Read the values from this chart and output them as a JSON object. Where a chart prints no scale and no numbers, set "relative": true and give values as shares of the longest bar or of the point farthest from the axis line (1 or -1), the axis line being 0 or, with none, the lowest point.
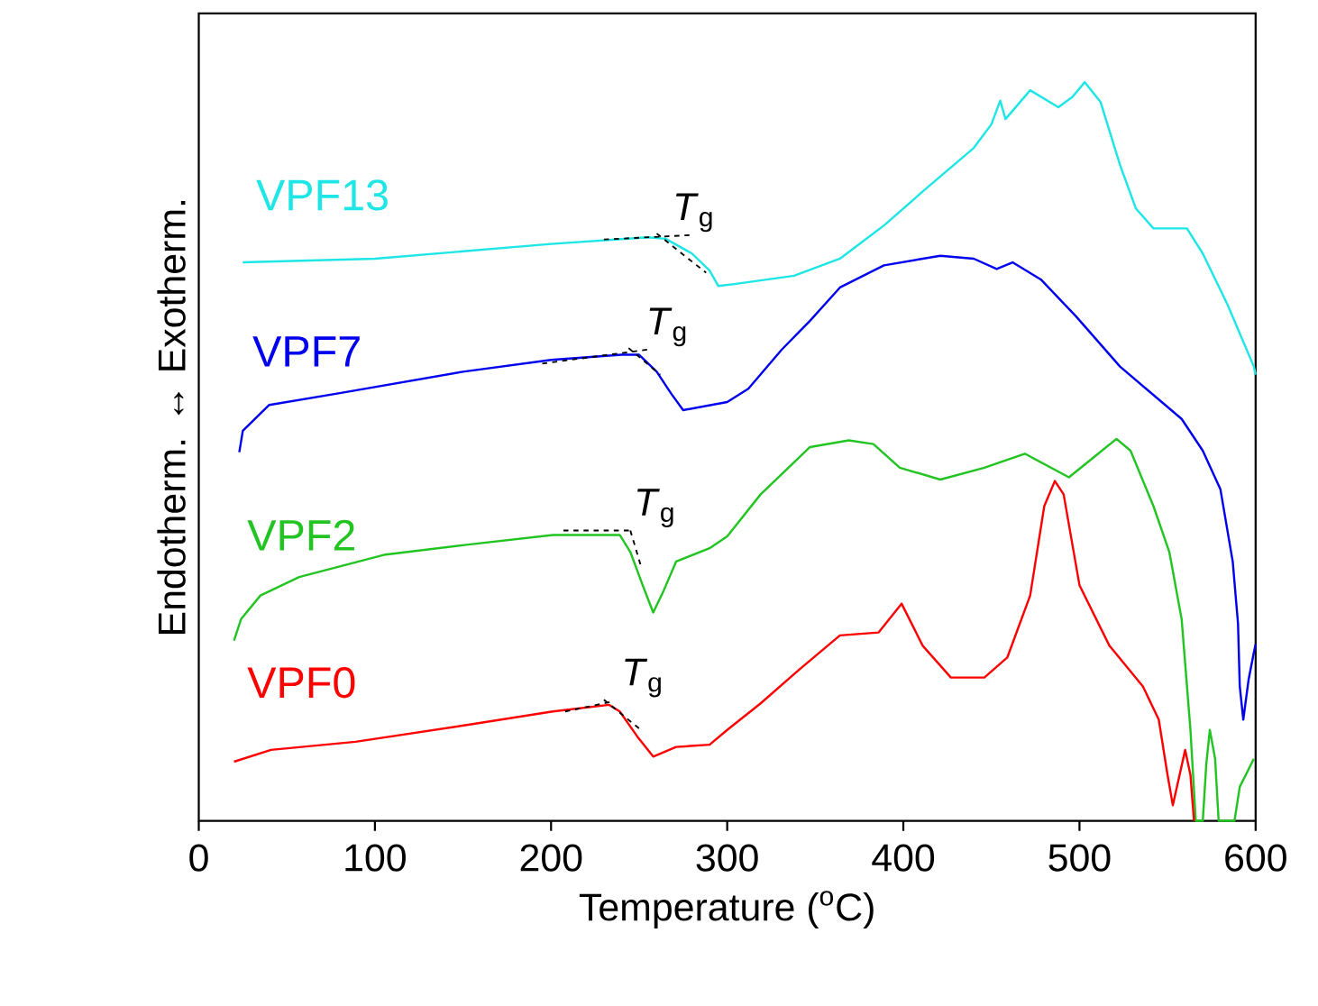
{
  "chart_data": {
    "type": "line",
    "xlabel": "Temperature ($^{o}$C)",
    "ylabel": "Endotherm. ↔ Exotherm.",
    "xlim": [
      0,
      600
    ],
    "xticks": [
      0,
      100,
      200,
      300,
      400,
      500,
      600
    ],
    "relative": true,
    "series": [
      {
        "name": "VPF13",
        "color": "#1ee6e6",
        "x": [
          25,
          100,
          200,
          255,
          265,
          280,
          290,
          295,
          305,
          338,
          364,
          389,
          411,
          440,
          450,
          455,
          458,
          472,
          488,
          496,
          503,
          512,
          523,
          532,
          542,
          561,
          570,
          584,
          599,
          600
        ],
        "values": [
          0.756,
          0.761,
          0.781,
          0.79,
          0.788,
          0.768,
          0.745,
          0.724,
          0.727,
          0.738,
          0.761,
          0.806,
          0.852,
          0.911,
          0.943,
          0.975,
          0.95,
          0.989,
          0.966,
          0.98,
          1.0,
          0.973,
          0.888,
          0.829,
          0.802,
          0.802,
          0.768,
          0.699,
          0.615,
          0.604
        ]
      },
      {
        "name": "VPF7",
        "color": "#0000ee",
        "x": [
          23,
          25,
          40,
          80,
          150,
          200,
          240,
          250,
          260,
          268,
          275,
          300,
          312,
          331,
          347,
          364,
          389,
          421,
          440,
          453,
          462,
          478,
          498,
          523,
          558,
          570,
          580,
          587,
          590,
          591,
          593,
          596,
          599,
          600
        ],
        "values": [
          0.499,
          0.528,
          0.563,
          0.579,
          0.608,
          0.624,
          0.631,
          0.631,
          0.608,
          0.579,
          0.556,
          0.567,
          0.585,
          0.638,
          0.677,
          0.722,
          0.752,
          0.765,
          0.761,
          0.747,
          0.756,
          0.733,
          0.683,
          0.615,
          0.544,
          0.501,
          0.449,
          0.351,
          0.267,
          0.182,
          0.137,
          0.191,
          0.228,
          0.239
        ]
      },
      {
        "name": "VPF2",
        "color": "#22c422",
        "x": [
          20,
          24,
          35,
          57,
          105,
          153,
          201,
          239,
          245,
          252,
          258,
          264,
          271,
          290,
          300,
          319,
          347,
          369,
          383,
          398,
          421,
          446,
          469,
          494,
          507,
          521,
          529,
          542,
          551,
          558,
          563,
          566,
          570,
          572,
          574,
          577,
          579,
          588,
          591,
          599
        ],
        "values": [
          0.244,
          0.273,
          0.305,
          0.33,
          0.36,
          0.374,
          0.387,
          0.387,
          0.364,
          0.319,
          0.282,
          0.312,
          0.351,
          0.369,
          0.385,
          0.442,
          0.506,
          0.515,
          0.51,
          0.478,
          0.462,
          0.478,
          0.497,
          0.465,
          0.49,
          0.517,
          0.501,
          0.426,
          0.364,
          0.273,
          0.123,
          0,
          0,
          0.077,
          0.123,
          0.084,
          0,
          0,
          0.046,
          0.084
        ]
      },
      {
        "name": "VPF0",
        "color": "#ff0000",
        "x": [
          20,
          41,
          89,
          153,
          201,
          233,
          239,
          249,
          258,
          271,
          290,
          300,
          319,
          341,
          364,
          386,
          399,
          411,
          427,
          446,
          459,
          472,
          480,
          486,
          491,
          500,
          517,
          536,
          545,
          550,
          553,
          560,
          563,
          565
        ],
        "values": [
          0.08,
          0.096,
          0.107,
          0.13,
          0.148,
          0.157,
          0.148,
          0.114,
          0.087,
          0.1,
          0.103,
          0.123,
          0.159,
          0.205,
          0.251,
          0.255,
          0.294,
          0.237,
          0.194,
          0.194,
          0.221,
          0.305,
          0.426,
          0.46,
          0.442,
          0.319,
          0.237,
          0.182,
          0.137,
          0.062,
          0.021,
          0.096,
          0.062,
          0
        ]
      },
      {
        "color": "#000000",
        "line_style": "dashed",
        "x": [
          230,
          280,
          null,
          260,
          288
        ],
        "values": [
          0.787,
          0.793,
          null,
          0.795,
          0.742
        ]
      },
      {
        "color": "#000000",
        "line_style": "dashed",
        "x": [
          195,
          255,
          null,
          244,
          262
        ],
        "values": [
          0.619,
          0.638,
          null,
          0.64,
          0.604
        ]
      },
      {
        "color": "#000000",
        "line_style": "dashed",
        "x": [
          207,
          245,
          null,
          245,
          251
        ],
        "values": [
          0.393,
          0.393,
          null,
          0.393,
          0.345
        ]
      },
      {
        "color": "#000000",
        "line_style": "dashed",
        "x": [
          208,
          236,
          null,
          230,
          250
        ],
        "values": [
          0.148,
          0.162,
          null,
          0.164,
          0.125
        ]
      }
    ],
    "annotations": [
      {
        "text": "*T*$_{g}$",
        "x": 265,
        "y": 0.79
      },
      {
        "text": "*T*$_{g}$",
        "x": 250,
        "y": 0.635
      },
      {
        "text": "*T*$_{g}$",
        "x": 243,
        "y": 0.39
      },
      {
        "text": "*T*$_{g}$",
        "x": 236,
        "y": 0.16
      }
    ]
  }
}
